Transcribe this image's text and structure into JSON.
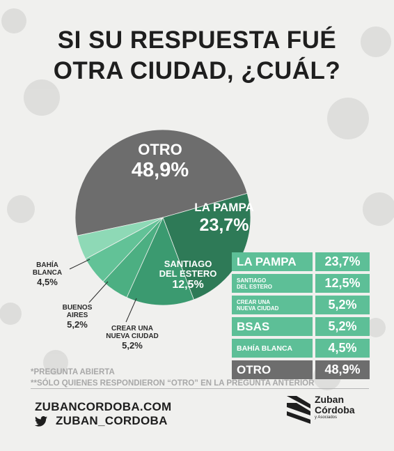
{
  "title": {
    "line1": "SI SU RESPUESTA FUÉ",
    "line2": "OTRA CIUDAD, ¿CUÁL?"
  },
  "colors": {
    "otro": "#6d6d6d",
    "la_pampa": "#2e7a57",
    "santiago": "#3b9a70",
    "crear": "#4caf82",
    "baires": "#62c297",
    "bahia": "#8ed9b6",
    "table": "#5dbf97",
    "table_otro": "#6d6d6d"
  },
  "chart_data": {
    "type": "pie",
    "slices": [
      {
        "name": "OTRO",
        "value": 48.9,
        "label": "48,9%"
      },
      {
        "name": "LA PAMPA",
        "value": 23.7,
        "label": "23,7%"
      },
      {
        "name": "SANTIAGO DEL ESTERO",
        "value": 12.5,
        "label": "12,5%"
      },
      {
        "name": "CREAR UNA NUEVA CIUDAD",
        "value": 5.2,
        "label": "5,2%"
      },
      {
        "name": "BUENOS AIRES",
        "value": 5.2,
        "label": "5,2%"
      },
      {
        "name": "BAHÍA BLANCA",
        "value": 4.5,
        "label": "4,5%"
      }
    ]
  },
  "labels": {
    "otro_name": "OTRO",
    "otro_pct": "48,9%",
    "pampa_name": "LA PAMPA",
    "pampa_pct": "23,7%",
    "sgo_l1": "SANTIAGO",
    "sgo_l2": "DEL ESTERO",
    "sgo_pct": "12,5%",
    "bahia_l1": "BAHÍA",
    "bahia_l2": "BLANCA",
    "bahia_pct": "4,5%",
    "baires_l1": "BUENOS",
    "baires_l2": "AIRES",
    "baires_pct": "5,2%",
    "crear_l1": "CREAR UNA",
    "crear_l2": "NUEVA CIUDAD",
    "crear_pct": "5,2%"
  },
  "table": [
    {
      "name": "LA PAMPA",
      "pct": "23,7%"
    },
    {
      "name_l1": "SANTIAGO",
      "name_l2": "DEL ESTERO",
      "pct": "12,5%"
    },
    {
      "name_l1": "CREAR UNA",
      "name_l2": "NUEVA CIUDAD",
      "pct": "5,2%"
    },
    {
      "name": "BSAS",
      "pct": "5,2%"
    },
    {
      "name": "BAHÍA BLANCA",
      "pct": "4,5%"
    },
    {
      "name": "OTRO",
      "pct": "48,9%"
    }
  ],
  "notes": {
    "line1": "*PREGUNTA ABIERTA",
    "line2": "**SÓLO QUIENES RESPONDIERON “OTRO” EN LA PREGUNTA ANTERIOR"
  },
  "footer": {
    "website": "ZUBANCORDOBA.COM",
    "twitter": "ZUBAN_CORDOBA",
    "logo_line1": "Zuban",
    "logo_line2": "Córdoba",
    "logo_line3": "y Asociados"
  }
}
